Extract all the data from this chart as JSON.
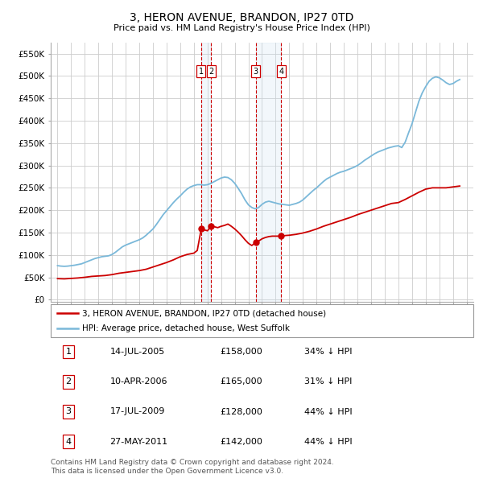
{
  "title": "3, HERON AVENUE, BRANDON, IP27 0TD",
  "subtitle": "Price paid vs. HM Land Registry's House Price Index (HPI)",
  "ylabel_ticks": [
    "£0",
    "£50K",
    "£100K",
    "£150K",
    "£200K",
    "£250K",
    "£300K",
    "£350K",
    "£400K",
    "£450K",
    "£500K",
    "£550K"
  ],
  "ytick_values": [
    0,
    50000,
    100000,
    150000,
    200000,
    250000,
    300000,
    350000,
    400000,
    450000,
    500000,
    550000
  ],
  "xlim": [
    1994.5,
    2025.5
  ],
  "ylim": [
    -5000,
    575000
  ],
  "background_color": "#ffffff",
  "grid_color": "#cccccc",
  "hpi_color": "#7ab8d9",
  "property_color": "#cc0000",
  "sale_marker_color": "#cc0000",
  "sale_dashed_color": "#cc0000",
  "sale_fill_color": "#cce0f0",
  "transactions": [
    {
      "id": 1,
      "date": "14-JUL-2005",
      "year": 2005.54,
      "price": 158000,
      "pct": "34%"
    },
    {
      "id": 2,
      "date": "10-APR-2006",
      "year": 2006.28,
      "price": 165000,
      "pct": "31%"
    },
    {
      "id": 3,
      "date": "17-JUL-2009",
      "year": 2009.54,
      "price": 128000,
      "pct": "44%"
    },
    {
      "id": 4,
      "date": "27-MAY-2011",
      "year": 2011.41,
      "price": 142000,
      "pct": "44%"
    }
  ],
  "legend_line1": "3, HERON AVENUE, BRANDON, IP27 0TD (detached house)",
  "legend_line2": "HPI: Average price, detached house, West Suffolk",
  "footer1": "Contains HM Land Registry data © Crown copyright and database right 2024.",
  "footer2": "This data is licensed under the Open Government Licence v3.0.",
  "hpi_data": {
    "years": [
      1995.0,
      1995.25,
      1995.5,
      1995.75,
      1996.0,
      1996.25,
      1996.5,
      1996.75,
      1997.0,
      1997.25,
      1997.5,
      1997.75,
      1998.0,
      1998.25,
      1998.5,
      1998.75,
      1999.0,
      1999.25,
      1999.5,
      1999.75,
      2000.0,
      2000.25,
      2000.5,
      2000.75,
      2001.0,
      2001.25,
      2001.5,
      2001.75,
      2002.0,
      2002.25,
      2002.5,
      2002.75,
      2003.0,
      2003.25,
      2003.5,
      2003.75,
      2004.0,
      2004.25,
      2004.5,
      2004.75,
      2005.0,
      2005.25,
      2005.5,
      2005.75,
      2006.0,
      2006.25,
      2006.5,
      2006.75,
      2007.0,
      2007.25,
      2007.5,
      2007.75,
      2008.0,
      2008.25,
      2008.5,
      2008.75,
      2009.0,
      2009.25,
      2009.5,
      2009.75,
      2010.0,
      2010.25,
      2010.5,
      2010.75,
      2011.0,
      2011.25,
      2011.5,
      2011.75,
      2012.0,
      2012.25,
      2012.5,
      2012.75,
      2013.0,
      2013.25,
      2013.5,
      2013.75,
      2014.0,
      2014.25,
      2014.5,
      2014.75,
      2015.0,
      2015.25,
      2015.5,
      2015.75,
      2016.0,
      2016.25,
      2016.5,
      2016.75,
      2017.0,
      2017.25,
      2017.5,
      2017.75,
      2018.0,
      2018.25,
      2018.5,
      2018.75,
      2019.0,
      2019.25,
      2019.5,
      2019.75,
      2020.0,
      2020.25,
      2020.5,
      2020.75,
      2021.0,
      2021.25,
      2021.5,
      2021.75,
      2022.0,
      2022.25,
      2022.5,
      2022.75,
      2023.0,
      2023.25,
      2023.5,
      2023.75,
      2024.0,
      2024.25,
      2024.5
    ],
    "values": [
      76000,
      75000,
      74500,
      75000,
      76000,
      77000,
      78500,
      80000,
      83000,
      86000,
      89000,
      92000,
      94000,
      96000,
      97000,
      98000,
      101000,
      106000,
      112000,
      118000,
      122000,
      125000,
      128000,
      131000,
      134000,
      138000,
      144000,
      151000,
      158000,
      168000,
      179000,
      190000,
      199000,
      208000,
      217000,
      225000,
      232000,
      240000,
      247000,
      252000,
      255000,
      257000,
      257000,
      256000,
      257000,
      260000,
      264000,
      268000,
      272000,
      274000,
      273000,
      268000,
      260000,
      249000,
      237000,
      223000,
      212000,
      206000,
      203000,
      206000,
      213000,
      218000,
      220000,
      218000,
      216000,
      214000,
      213000,
      212000,
      211000,
      213000,
      215000,
      218000,
      223000,
      230000,
      237000,
      244000,
      250000,
      257000,
      264000,
      270000,
      274000,
      278000,
      282000,
      285000,
      287000,
      290000,
      293000,
      296000,
      300000,
      305000,
      311000,
      316000,
      321000,
      326000,
      330000,
      333000,
      336000,
      339000,
      341000,
      343000,
      344000,
      340000,
      352000,
      373000,
      393000,
      418000,
      443000,
      462000,
      476000,
      488000,
      495000,
      498000,
      496000,
      491000,
      485000,
      481000,
      483000,
      488000,
      492000
    ]
  },
  "property_data": {
    "years": [
      1995.0,
      1995.5,
      1996.0,
      1996.5,
      1997.0,
      1997.5,
      1998.0,
      1998.5,
      1999.0,
      1999.5,
      2000.0,
      2000.5,
      2001.0,
      2001.5,
      2002.0,
      2002.5,
      2003.0,
      2003.5,
      2004.0,
      2004.5,
      2005.0,
      2005.25,
      2005.54,
      2005.75,
      2006.0,
      2006.28,
      2006.5,
      2006.75,
      2007.0,
      2007.25,
      2007.5,
      2007.75,
      2008.0,
      2008.25,
      2008.5,
      2008.75,
      2009.0,
      2009.25,
      2009.54,
      2009.75,
      2010.0,
      2010.25,
      2010.5,
      2010.75,
      2011.0,
      2011.41,
      2011.75,
      2012.0,
      2012.5,
      2013.0,
      2013.5,
      2014.0,
      2014.5,
      2015.0,
      2015.5,
      2016.0,
      2016.5,
      2017.0,
      2017.5,
      2018.0,
      2018.5,
      2019.0,
      2019.5,
      2020.0,
      2020.5,
      2021.0,
      2021.5,
      2022.0,
      2022.5,
      2023.0,
      2023.5,
      2024.0,
      2024.5
    ],
    "values": [
      47000,
      46500,
      47500,
      48500,
      50000,
      52000,
      53000,
      54000,
      56000,
      59000,
      61000,
      63000,
      65000,
      68000,
      73000,
      78000,
      83000,
      89000,
      96000,
      101000,
      104000,
      110000,
      158000,
      156000,
      154000,
      165000,
      163000,
      161000,
      164000,
      166000,
      169000,
      164000,
      158000,
      151000,
      143000,
      134000,
      126000,
      121000,
      128000,
      131000,
      136000,
      139000,
      141000,
      142000,
      142000,
      142000,
      143500,
      144000,
      146000,
      149000,
      153000,
      158000,
      164000,
      169000,
      174000,
      179000,
      184000,
      190000,
      195000,
      200000,
      205000,
      210000,
      215000,
      217000,
      224000,
      232000,
      240000,
      247000,
      250000,
      250000,
      250000,
      252000,
      254000
    ]
  }
}
